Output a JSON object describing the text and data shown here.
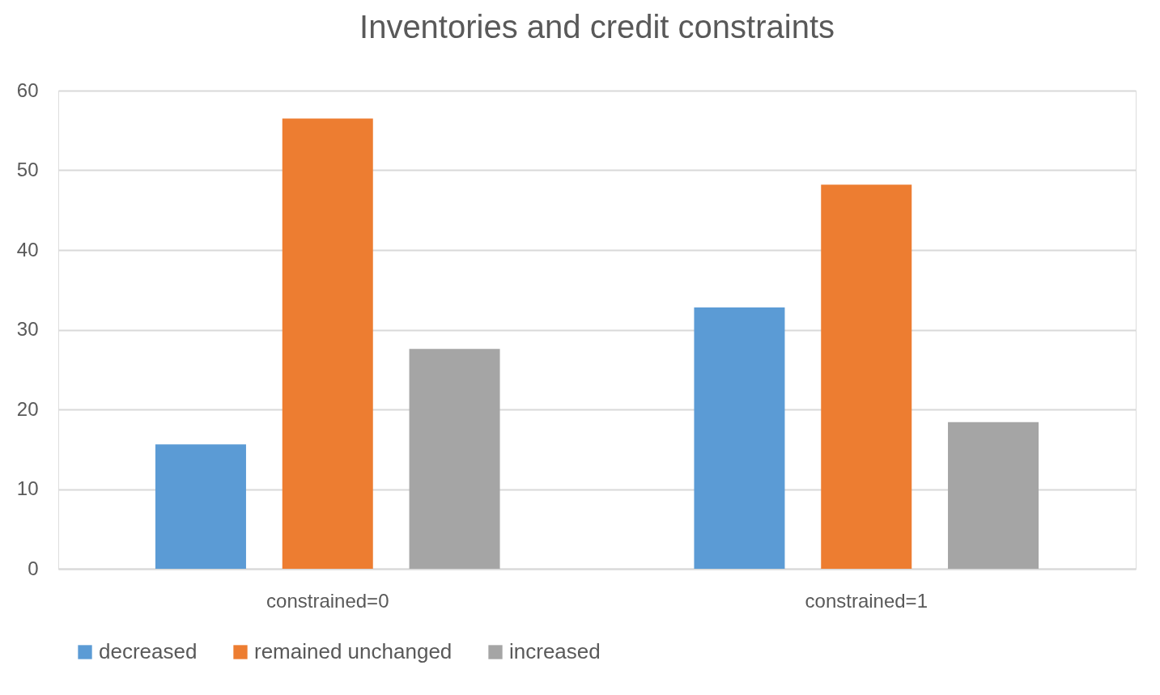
{
  "chart_data": {
    "type": "bar",
    "title": "Inventories and credit constraints",
    "categories": [
      "constrained=0",
      "constrained=1"
    ],
    "series": [
      {
        "name": "decreased",
        "color": "#5b9bd5",
        "values": [
          15.6,
          32.8
        ]
      },
      {
        "name": "remained unchanged",
        "color": "#ed7d31",
        "values": [
          56.5,
          48.2
        ]
      },
      {
        "name": "increased",
        "color": "#a5a5a5",
        "values": [
          27.6,
          18.4
        ]
      }
    ],
    "ylim": [
      0,
      60
    ],
    "yticks": [
      0,
      10,
      20,
      30,
      40,
      50,
      60
    ],
    "grid": "y",
    "legend": "bottom"
  }
}
